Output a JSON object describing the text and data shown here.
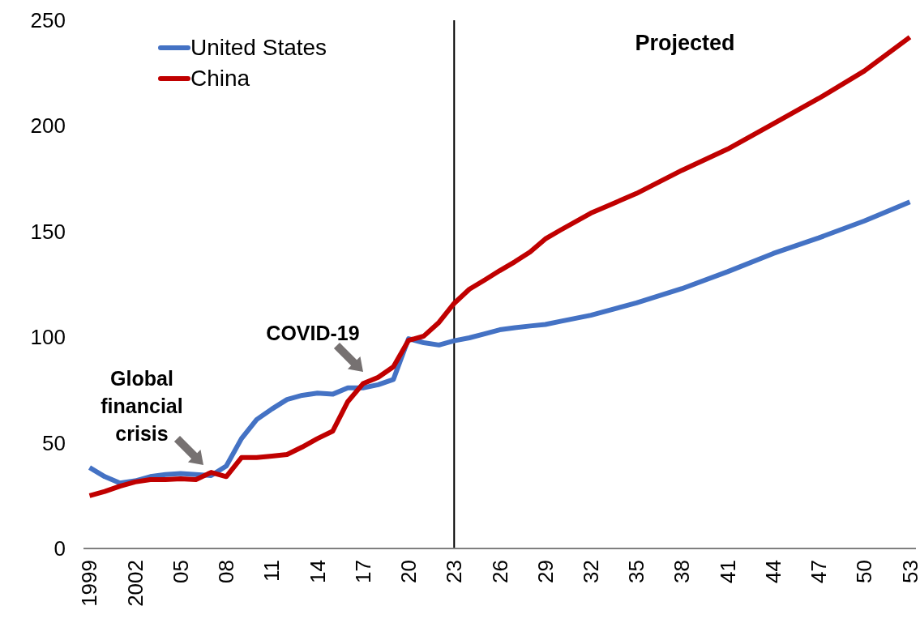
{
  "chart_data": {
    "type": "line",
    "x": [
      1999,
      2000,
      2001,
      2002,
      2003,
      2004,
      2005,
      2006,
      2007,
      2008,
      2009,
      2010,
      2011,
      2012,
      2013,
      2014,
      2015,
      2016,
      2017,
      2018,
      2019,
      2020,
      2021,
      2022,
      2023,
      2024,
      2025,
      2026,
      2027,
      2028,
      2029,
      2030,
      2032,
      2035,
      2038,
      2041,
      2044,
      2047,
      2050,
      2053
    ],
    "series": [
      {
        "name": "United States",
        "color": "#4472c4",
        "values": [
          38.3,
          34,
          31,
          32,
          34,
          35,
          35.5,
          35,
          34.5,
          39,
          52,
          61,
          66,
          70.5,
          72.5,
          73.5,
          73,
          76,
          76,
          77.5,
          80,
          99.3,
          97.4,
          96.3,
          98.3,
          99.7,
          101.6,
          103.5,
          104.5,
          105.3,
          106,
          107.5,
          110.4,
          116.2,
          123,
          131,
          139.6,
          147,
          155,
          164
        ]
      },
      {
        "name": "China",
        "color": "#c00000",
        "values": [
          25,
          27,
          29.5,
          31.5,
          32.6,
          32.6,
          33,
          32.6,
          36,
          34,
          43,
          43,
          43.7,
          44.5,
          48,
          52,
          55.5,
          69.5,
          78,
          81,
          86,
          98.5,
          100.5,
          107,
          116,
          122.7,
          127,
          131.5,
          135.7,
          140.3,
          146.5,
          150.7,
          158.7,
          168,
          179,
          189,
          201,
          213,
          226,
          242
        ]
      }
    ],
    "xlim": [
      1998.6,
      2053.4
    ],
    "xticks": [
      {
        "value": 1999,
        "label": "1999"
      },
      {
        "value": 2002,
        "label": "2002"
      },
      {
        "value": 2005,
        "label": "05"
      },
      {
        "value": 2008,
        "label": "08"
      },
      {
        "value": 2011,
        "label": "11"
      },
      {
        "value": 2014,
        "label": "14"
      },
      {
        "value": 2017,
        "label": "17"
      },
      {
        "value": 2020,
        "label": "20"
      },
      {
        "value": 2023,
        "label": "23"
      },
      {
        "value": 2026,
        "label": "26"
      },
      {
        "value": 2029,
        "label": "29"
      },
      {
        "value": 2032,
        "label": "32"
      },
      {
        "value": 2035,
        "label": "35"
      },
      {
        "value": 2038,
        "label": "38"
      },
      {
        "value": 2041,
        "label": "41"
      },
      {
        "value": 2044,
        "label": "44"
      },
      {
        "value": 2047,
        "label": "47"
      },
      {
        "value": 2050,
        "label": "50"
      },
      {
        "value": 2053,
        "label": "53"
      }
    ],
    "ylim": [
      0,
      250
    ],
    "yticks": [
      0,
      50,
      100,
      150,
      200,
      250
    ],
    "ref_lines": [
      {
        "axis": "x",
        "value": 2023,
        "color": "#000000"
      }
    ],
    "annotations": [
      "Global financial crisis",
      "COVID-19",
      "Projected"
    ],
    "legend": "top left",
    "marker": "none",
    "line_style": "solid"
  }
}
